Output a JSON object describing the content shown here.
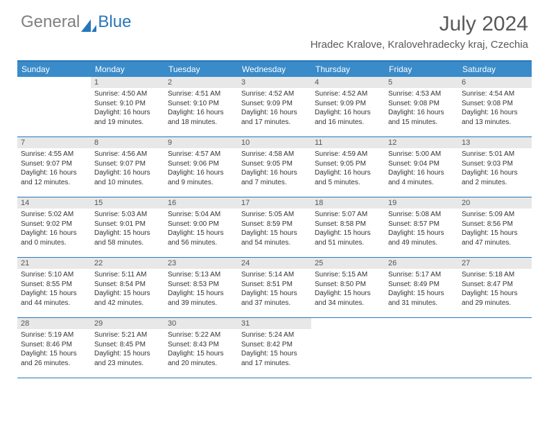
{
  "logo": {
    "gray": "General",
    "blue": "Blue"
  },
  "title": "July 2024",
  "location": "Hradec Kralove, Kralovehradecky kraj, Czechia",
  "colors": {
    "header_bar": "#3a8bc9",
    "border": "#2776b9",
    "daynum_bg": "#e8e8e8",
    "text_gray": "#595959",
    "logo_blue": "#2776b9",
    "logo_gray": "#7f7f7f"
  },
  "dow": [
    "Sunday",
    "Monday",
    "Tuesday",
    "Wednesday",
    "Thursday",
    "Friday",
    "Saturday"
  ],
  "weeks": [
    [
      {
        "n": "",
        "sr": "",
        "ss": "",
        "dl": ""
      },
      {
        "n": "1",
        "sr": "Sunrise: 4:50 AM",
        "ss": "Sunset: 9:10 PM",
        "dl": "Daylight: 16 hours and 19 minutes."
      },
      {
        "n": "2",
        "sr": "Sunrise: 4:51 AM",
        "ss": "Sunset: 9:10 PM",
        "dl": "Daylight: 16 hours and 18 minutes."
      },
      {
        "n": "3",
        "sr": "Sunrise: 4:52 AM",
        "ss": "Sunset: 9:09 PM",
        "dl": "Daylight: 16 hours and 17 minutes."
      },
      {
        "n": "4",
        "sr": "Sunrise: 4:52 AM",
        "ss": "Sunset: 9:09 PM",
        "dl": "Daylight: 16 hours and 16 minutes."
      },
      {
        "n": "5",
        "sr": "Sunrise: 4:53 AM",
        "ss": "Sunset: 9:08 PM",
        "dl": "Daylight: 16 hours and 15 minutes."
      },
      {
        "n": "6",
        "sr": "Sunrise: 4:54 AM",
        "ss": "Sunset: 9:08 PM",
        "dl": "Daylight: 16 hours and 13 minutes."
      }
    ],
    [
      {
        "n": "7",
        "sr": "Sunrise: 4:55 AM",
        "ss": "Sunset: 9:07 PM",
        "dl": "Daylight: 16 hours and 12 minutes."
      },
      {
        "n": "8",
        "sr": "Sunrise: 4:56 AM",
        "ss": "Sunset: 9:07 PM",
        "dl": "Daylight: 16 hours and 10 minutes."
      },
      {
        "n": "9",
        "sr": "Sunrise: 4:57 AM",
        "ss": "Sunset: 9:06 PM",
        "dl": "Daylight: 16 hours and 9 minutes."
      },
      {
        "n": "10",
        "sr": "Sunrise: 4:58 AM",
        "ss": "Sunset: 9:05 PM",
        "dl": "Daylight: 16 hours and 7 minutes."
      },
      {
        "n": "11",
        "sr": "Sunrise: 4:59 AM",
        "ss": "Sunset: 9:05 PM",
        "dl": "Daylight: 16 hours and 5 minutes."
      },
      {
        "n": "12",
        "sr": "Sunrise: 5:00 AM",
        "ss": "Sunset: 9:04 PM",
        "dl": "Daylight: 16 hours and 4 minutes."
      },
      {
        "n": "13",
        "sr": "Sunrise: 5:01 AM",
        "ss": "Sunset: 9:03 PM",
        "dl": "Daylight: 16 hours and 2 minutes."
      }
    ],
    [
      {
        "n": "14",
        "sr": "Sunrise: 5:02 AM",
        "ss": "Sunset: 9:02 PM",
        "dl": "Daylight: 16 hours and 0 minutes."
      },
      {
        "n": "15",
        "sr": "Sunrise: 5:03 AM",
        "ss": "Sunset: 9:01 PM",
        "dl": "Daylight: 15 hours and 58 minutes."
      },
      {
        "n": "16",
        "sr": "Sunrise: 5:04 AM",
        "ss": "Sunset: 9:00 PM",
        "dl": "Daylight: 15 hours and 56 minutes."
      },
      {
        "n": "17",
        "sr": "Sunrise: 5:05 AM",
        "ss": "Sunset: 8:59 PM",
        "dl": "Daylight: 15 hours and 54 minutes."
      },
      {
        "n": "18",
        "sr": "Sunrise: 5:07 AM",
        "ss": "Sunset: 8:58 PM",
        "dl": "Daylight: 15 hours and 51 minutes."
      },
      {
        "n": "19",
        "sr": "Sunrise: 5:08 AM",
        "ss": "Sunset: 8:57 PM",
        "dl": "Daylight: 15 hours and 49 minutes."
      },
      {
        "n": "20",
        "sr": "Sunrise: 5:09 AM",
        "ss": "Sunset: 8:56 PM",
        "dl": "Daylight: 15 hours and 47 minutes."
      }
    ],
    [
      {
        "n": "21",
        "sr": "Sunrise: 5:10 AM",
        "ss": "Sunset: 8:55 PM",
        "dl": "Daylight: 15 hours and 44 minutes."
      },
      {
        "n": "22",
        "sr": "Sunrise: 5:11 AM",
        "ss": "Sunset: 8:54 PM",
        "dl": "Daylight: 15 hours and 42 minutes."
      },
      {
        "n": "23",
        "sr": "Sunrise: 5:13 AM",
        "ss": "Sunset: 8:53 PM",
        "dl": "Daylight: 15 hours and 39 minutes."
      },
      {
        "n": "24",
        "sr": "Sunrise: 5:14 AM",
        "ss": "Sunset: 8:51 PM",
        "dl": "Daylight: 15 hours and 37 minutes."
      },
      {
        "n": "25",
        "sr": "Sunrise: 5:15 AM",
        "ss": "Sunset: 8:50 PM",
        "dl": "Daylight: 15 hours and 34 minutes."
      },
      {
        "n": "26",
        "sr": "Sunrise: 5:17 AM",
        "ss": "Sunset: 8:49 PM",
        "dl": "Daylight: 15 hours and 31 minutes."
      },
      {
        "n": "27",
        "sr": "Sunrise: 5:18 AM",
        "ss": "Sunset: 8:47 PM",
        "dl": "Daylight: 15 hours and 29 minutes."
      }
    ],
    [
      {
        "n": "28",
        "sr": "Sunrise: 5:19 AM",
        "ss": "Sunset: 8:46 PM",
        "dl": "Daylight: 15 hours and 26 minutes."
      },
      {
        "n": "29",
        "sr": "Sunrise: 5:21 AM",
        "ss": "Sunset: 8:45 PM",
        "dl": "Daylight: 15 hours and 23 minutes."
      },
      {
        "n": "30",
        "sr": "Sunrise: 5:22 AM",
        "ss": "Sunset: 8:43 PM",
        "dl": "Daylight: 15 hours and 20 minutes."
      },
      {
        "n": "31",
        "sr": "Sunrise: 5:24 AM",
        "ss": "Sunset: 8:42 PM",
        "dl": "Daylight: 15 hours and 17 minutes."
      },
      {
        "n": "",
        "sr": "",
        "ss": "",
        "dl": ""
      },
      {
        "n": "",
        "sr": "",
        "ss": "",
        "dl": ""
      },
      {
        "n": "",
        "sr": "",
        "ss": "",
        "dl": ""
      }
    ]
  ]
}
